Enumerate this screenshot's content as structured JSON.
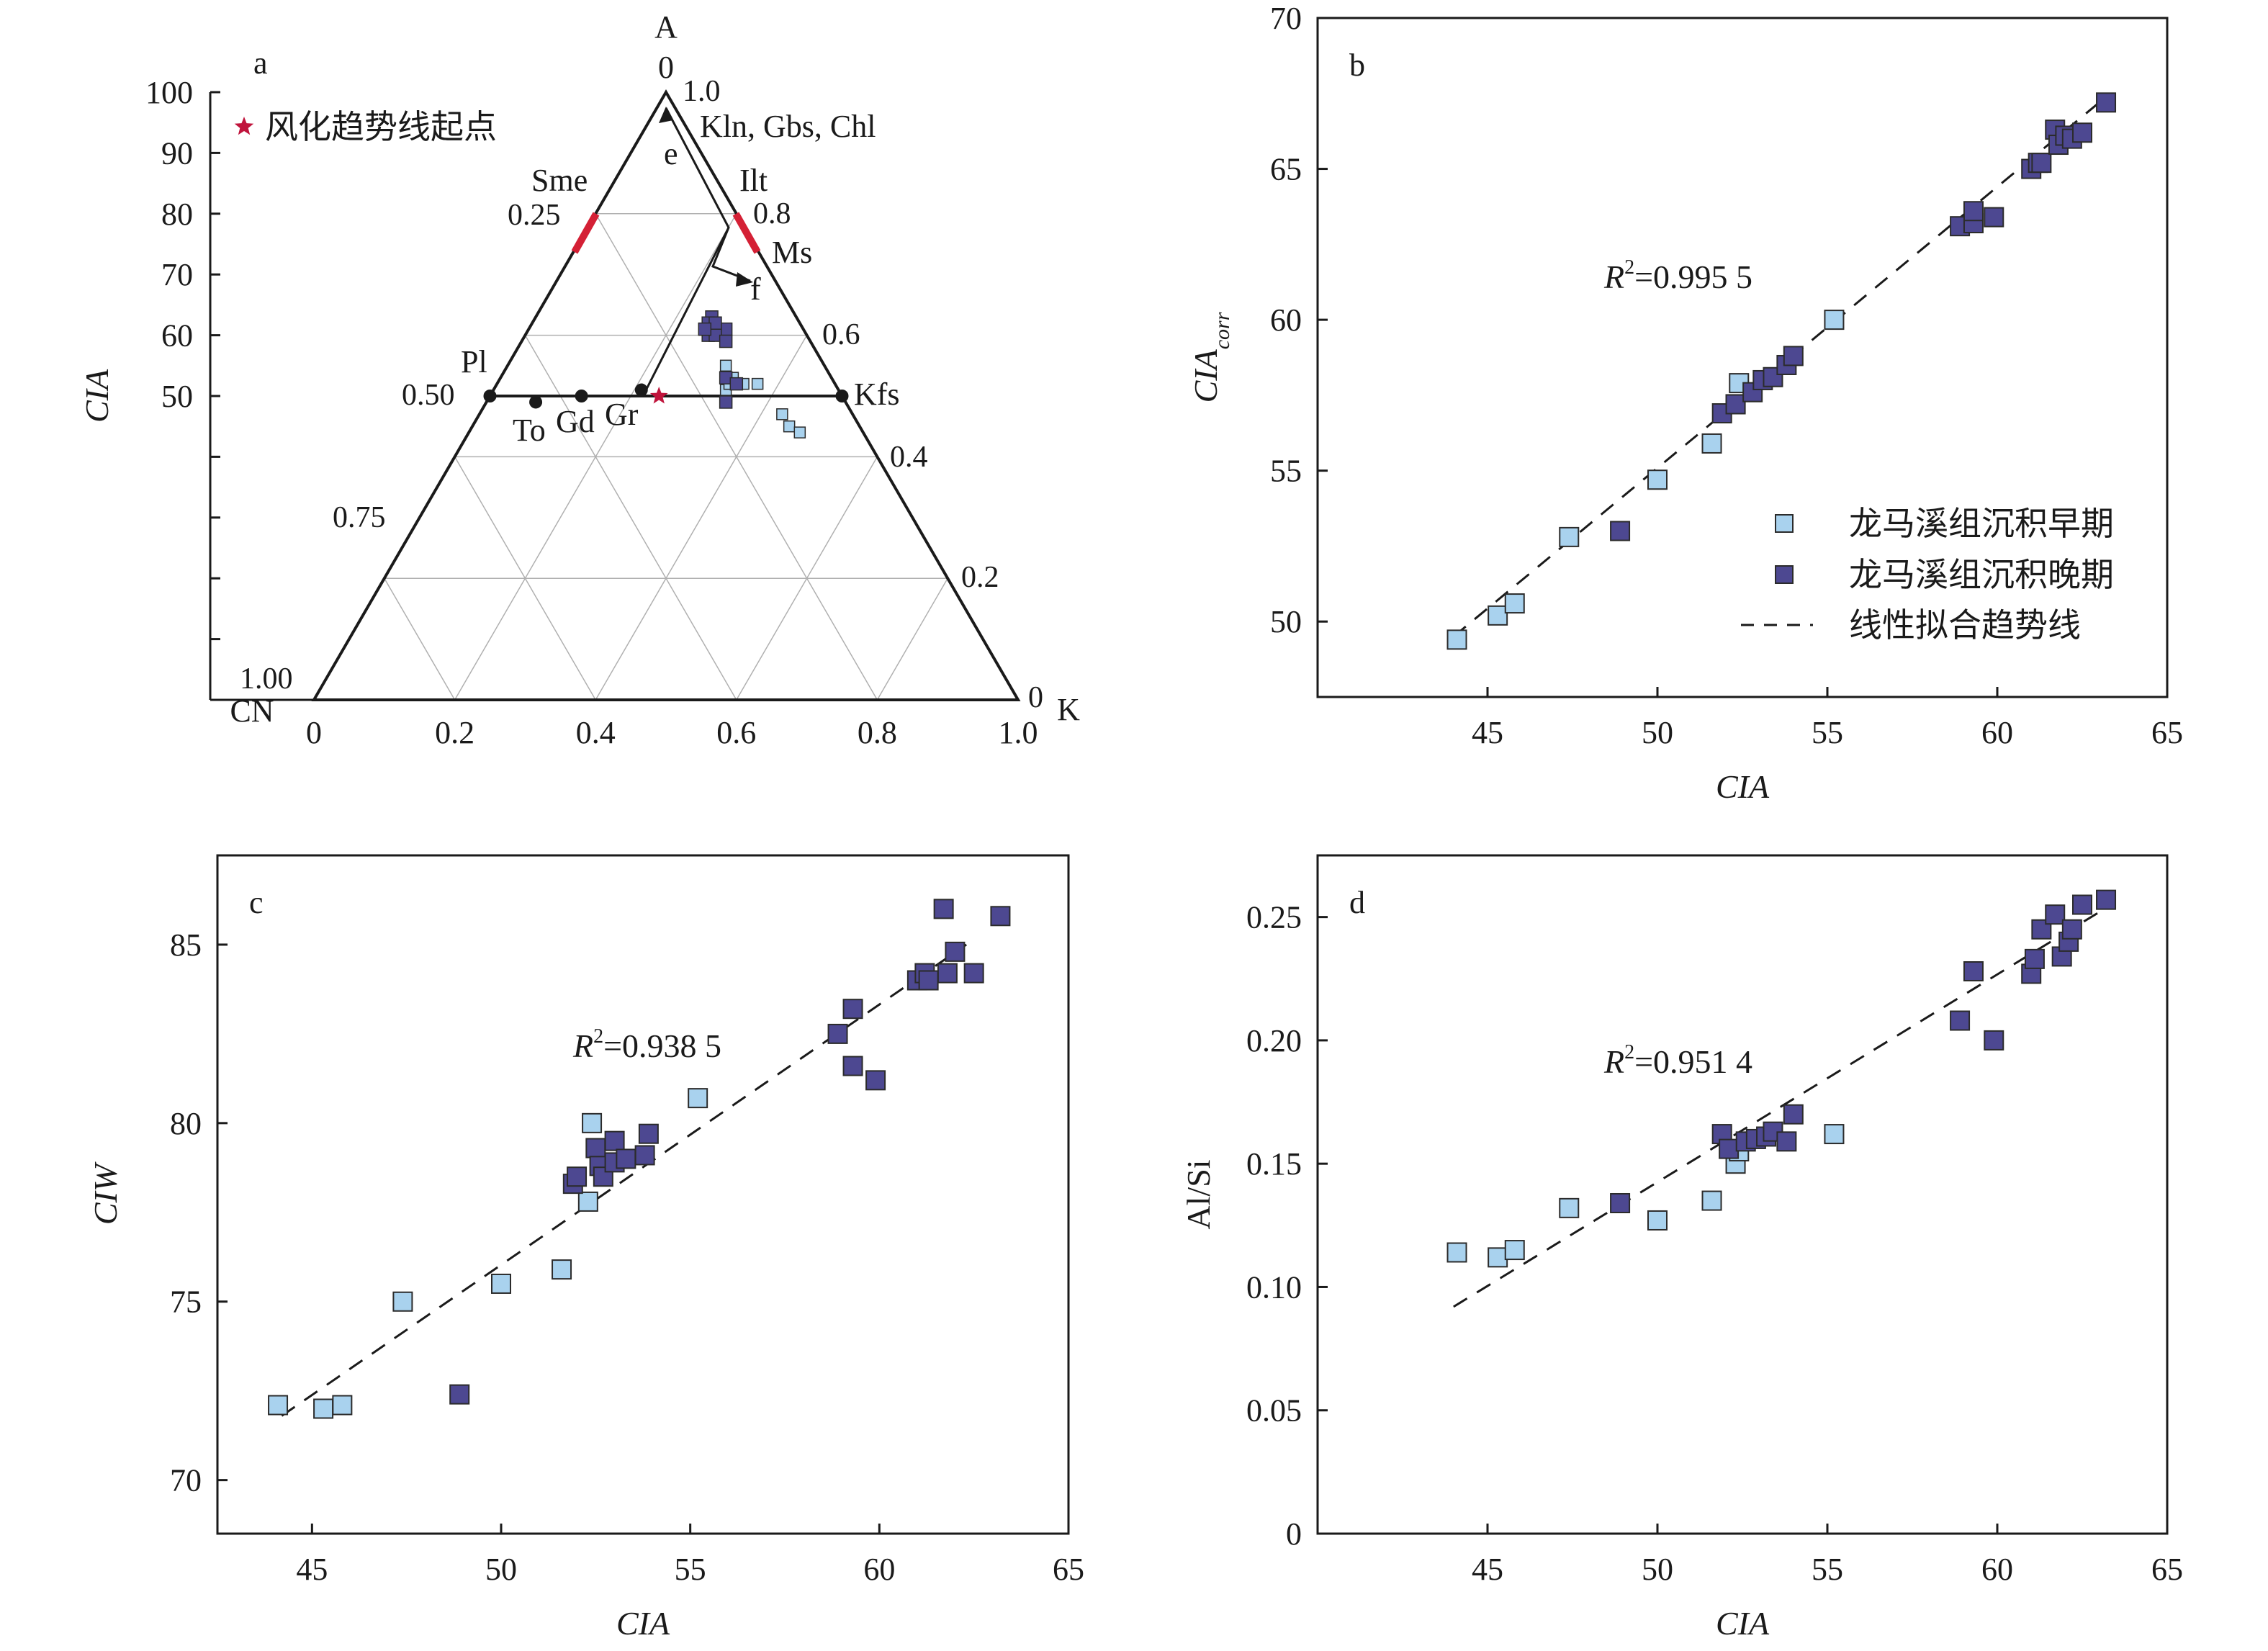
{
  "colors": {
    "early": "#a9d2ee",
    "late": "#4d4891",
    "marker_edge": "#2b2b2b",
    "start_star": "#c0143c",
    "gridline": "#b0b0b0",
    "axis": "#1a1a1a",
    "pl_kfs": "#1a1a1a",
    "sme_ilt_bar": "#d42035"
  },
  "panel_a": {
    "label": "a",
    "legend": "风化趋势线起点",
    "cia_axis_label": "CIA",
    "cia_ticks": [
      "100",
      "90",
      "80",
      "70",
      "60",
      "50"
    ],
    "vertex_a": "A",
    "vertex_cn": "CN",
    "vertex_k": "K",
    "left_edge_ticks": [
      "0.25",
      "0.50",
      "0.75",
      "1.00"
    ],
    "right_edge_ticks": [
      "1.0",
      "0.8",
      "0.6",
      "0.4",
      "0.2",
      "0"
    ],
    "bottom_ticks": [
      "0",
      "0.2",
      "0.4",
      "0.6",
      "0.8",
      "1.0"
    ],
    "top_tick": "0",
    "labels": {
      "kln": "Kln, Gbs, Chl",
      "sme": "Sme",
      "ilt": "Ilt",
      "ms": "Ms",
      "pl": "Pl",
      "kfs": "Kfs",
      "to": "To",
      "gd": "Gd",
      "gr": "Gr",
      "e": "e",
      "f": "f"
    }
  },
  "chart_data": [
    {
      "type": "ternary-scatter",
      "panel": "a",
      "axes": {
        "top": "A",
        "left": "CN",
        "right": "K"
      },
      "cia_scale": [
        50,
        100
      ],
      "grid": true,
      "reference_points": [
        {
          "name": "Pl",
          "A": 0.5,
          "CN": 0.5,
          "K": 0.0
        },
        {
          "name": "To",
          "A": 0.49,
          "CN": 0.44,
          "K": 0.07
        },
        {
          "name": "Gd",
          "A": 0.5,
          "CN": 0.37,
          "K": 0.13
        },
        {
          "name": "Gr",
          "A": 0.51,
          "CN": 0.28,
          "K": 0.21
        },
        {
          "name": "Kfs",
          "A": 0.5,
          "CN": 0.0,
          "K": 0.5
        }
      ],
      "weathering_trend_start": {
        "A": 0.5,
        "CN": 0.26,
        "K": 0.24
      },
      "trend_arrows": [
        {
          "label": "e",
          "to": "A"
        },
        {
          "label": "f",
          "to": "Ms"
        }
      ],
      "samples_early": [
        [
          0.55,
          0.14
        ],
        [
          0.53,
          0.14
        ],
        [
          0.52,
          0.13
        ],
        [
          0.51,
          0.16
        ],
        [
          0.52,
          0.11
        ],
        [
          0.47,
          0.1
        ],
        [
          0.45,
          0.1
        ],
        [
          0.44,
          0.09
        ],
        [
          0.52,
          0.15
        ]
      ],
      "samples_late": [
        [
          0.63,
          0.12
        ],
        [
          0.62,
          0.13
        ],
        [
          0.61,
          0.11
        ],
        [
          0.6,
          0.14
        ],
        [
          0.6,
          0.13
        ],
        [
          0.59,
          0.12
        ],
        [
          0.62,
          0.12
        ],
        [
          0.61,
          0.14
        ],
        [
          0.53,
          0.15
        ],
        [
          0.52,
          0.14
        ],
        [
          0.49,
          0.17
        ]
      ],
      "sample_columns": [
        "A",
        "CN"
      ]
    },
    {
      "type": "scatter",
      "panel": "b",
      "label": "b",
      "xlabel": "CIA",
      "ylabel": "CIA",
      "ylabel_sub": "corr",
      "xlim": [
        40,
        65
      ],
      "ylim": [
        47.5,
        70
      ],
      "xticks": [
        "45",
        "50",
        "55",
        "60",
        "65"
      ],
      "yticks": [
        "50",
        "55",
        "60",
        "65",
        "70"
      ],
      "r2_prefix": "R",
      "r2_text": "=0.995 5",
      "legend_position": "bottom-right",
      "legend": [
        "龙马溪组沉积早期",
        "龙马溪组沉积晚期",
        "线性拟合趋势线"
      ],
      "trend": {
        "x0": 44.0,
        "y0": 49.5,
        "x1": 63.0,
        "y1": 67.2
      },
      "series": [
        {
          "name": "龙马溪组沉积早期",
          "x": [
            44.1,
            45.3,
            45.8,
            47.4,
            50.0,
            51.6,
            52.3,
            52.4,
            55.2
          ],
          "y": [
            49.4,
            50.2,
            50.6,
            52.8,
            54.7,
            55.9,
            57.2,
            57.9,
            60.0
          ]
        },
        {
          "name": "龙马溪组沉积晚期",
          "x": [
            48.9,
            51.9,
            52.3,
            52.8,
            53.1,
            53.4,
            53.8,
            54.0,
            58.9,
            59.3,
            59.3,
            59.9,
            61.0,
            61.2,
            61.3,
            61.7,
            61.8,
            62.0,
            62.2,
            62.5,
            63.2
          ],
          "y": [
            53.0,
            56.9,
            57.2,
            57.6,
            58.0,
            58.1,
            58.5,
            58.8,
            63.1,
            63.2,
            63.6,
            63.4,
            65.0,
            65.2,
            65.2,
            66.3,
            65.8,
            66.1,
            66.0,
            66.2,
            67.2
          ]
        }
      ]
    },
    {
      "type": "scatter",
      "panel": "c",
      "label": "c",
      "xlabel": "CIA",
      "ylabel": "CIW",
      "xlim": [
        42.5,
        65
      ],
      "ylim": [
        68.5,
        87.5
      ],
      "xticks": [
        "45",
        "50",
        "55",
        "60",
        "65"
      ],
      "yticks": [
        "70",
        "75",
        "80",
        "85"
      ],
      "r2_prefix": "R",
      "r2_text": "=0.938 5",
      "trend": {
        "x0": 44.2,
        "y0": 71.8,
        "x1": 62.3,
        "y1": 85.0
      },
      "series": [
        {
          "name": "龙马溪组沉积早期",
          "x": [
            44.1,
            45.3,
            45.8,
            47.4,
            50.0,
            51.6,
            52.3,
            52.4,
            55.2
          ],
          "y": [
            72.1,
            72.0,
            72.1,
            75.0,
            75.5,
            75.9,
            77.8,
            80.0,
            80.7
          ]
        },
        {
          "name": "龙马溪组沉积晚期",
          "x": [
            48.9,
            51.9,
            52.0,
            52.5,
            52.6,
            52.7,
            53.0,
            53.0,
            53.3,
            53.8,
            53.9,
            58.9,
            59.3,
            59.3,
            59.9,
            61.0,
            61.2,
            61.3,
            61.7,
            61.8,
            62.0,
            62.5,
            63.2
          ],
          "y": [
            72.4,
            78.3,
            78.5,
            79.3,
            78.8,
            78.5,
            79.5,
            78.9,
            79.0,
            79.1,
            79.7,
            82.5,
            83.2,
            81.6,
            81.2,
            84.0,
            84.2,
            84.0,
            86.0,
            84.2,
            84.8,
            84.2,
            85.8
          ]
        }
      ]
    },
    {
      "type": "scatter",
      "panel": "d",
      "label": "d",
      "xlabel": "CIA",
      "ylabel": "Al/Si",
      "xlim": [
        40,
        65
      ],
      "ylim": [
        0,
        0.275
      ],
      "xticks": [
        "45",
        "50",
        "55",
        "60",
        "65"
      ],
      "yticks": [
        "0",
        "0.05",
        "0.10",
        "0.15",
        "0.20",
        "0.25"
      ],
      "r2_prefix": "R",
      "r2_text": "=0.951 4",
      "trend": {
        "x0": 44.0,
        "y0": 0.092,
        "x1": 63.0,
        "y1": 0.252
      },
      "series": [
        {
          "name": "龙马溪组沉积早期",
          "x": [
            44.1,
            45.3,
            45.8,
            47.4,
            50.0,
            51.6,
            52.3,
            52.4,
            55.2
          ],
          "y": [
            0.114,
            0.112,
            0.115,
            0.132,
            0.127,
            0.135,
            0.15,
            0.155,
            0.162
          ]
        },
        {
          "name": "龙马溪组沉积晚期",
          "x": [
            48.9,
            51.9,
            52.1,
            52.6,
            52.9,
            53.2,
            53.4,
            53.8,
            54.0,
            58.9,
            59.3,
            59.9,
            61.0,
            61.1,
            61.3,
            61.7,
            61.9,
            62.1,
            62.2,
            62.5,
            63.2
          ],
          "y": [
            0.134,
            0.162,
            0.156,
            0.159,
            0.16,
            0.161,
            0.163,
            0.159,
            0.17,
            0.208,
            0.228,
            0.2,
            0.227,
            0.233,
            0.245,
            0.251,
            0.234,
            0.24,
            0.245,
            0.255,
            0.257
          ]
        }
      ]
    }
  ]
}
